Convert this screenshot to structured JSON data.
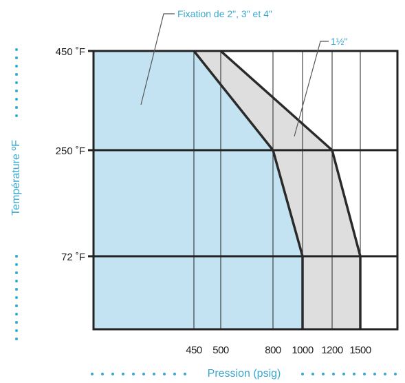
{
  "chart_data": {
    "type": "area",
    "xlabel": "Pression (psig)",
    "ylabel": "Température ºF",
    "x_ticks": [
      {
        "value": 450,
        "label": "450"
      },
      {
        "value": 500,
        "label": "500"
      },
      {
        "value": 800,
        "label": "800"
      },
      {
        "value": 1000,
        "label": "1000"
      },
      {
        "value": 1200,
        "label": "1200"
      },
      {
        "value": 1500,
        "label": "1500"
      }
    ],
    "y_ticks": [
      {
        "value": 450,
        "label": "450 ˚F"
      },
      {
        "value": 250,
        "label": "250 ˚F"
      },
      {
        "value": 72,
        "label": "72 ˚F"
      }
    ],
    "series": [
      {
        "name": "Fixation de 2\", 3\" et 4\"",
        "color": "#c3e2f2",
        "boundary": [
          {
            "pressure": 450,
            "temperature": 450
          },
          {
            "pressure": 800,
            "temperature": 250
          },
          {
            "pressure": 1000,
            "temperature": 72
          },
          {
            "pressure": 1000,
            "temperature": 0
          }
        ]
      },
      {
        "name": "1½\"",
        "color": "#dedede",
        "boundary": [
          {
            "pressure": 500,
            "temperature": 450
          },
          {
            "pressure": 1200,
            "temperature": 250
          },
          {
            "pressure": 1500,
            "temperature": 72
          },
          {
            "pressure": 1500,
            "temperature": 0
          }
        ]
      }
    ],
    "annotations": [
      "Fixation de 2\", 3\" et 4\"",
      "1½\""
    ],
    "grid": true,
    "colors": {
      "frame": "#222222",
      "accent": "#3aa7cf"
    }
  }
}
